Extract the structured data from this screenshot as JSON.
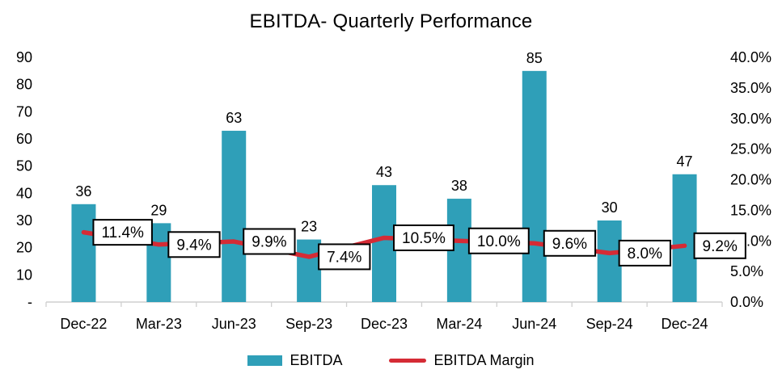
{
  "chart_data": {
    "type": "combo_bar_line",
    "title": "EBITDA- Quarterly Performance",
    "categories": [
      "Dec-22",
      "Mar-23",
      "Jun-23",
      "Sep-23",
      "Dec-23",
      "Mar-24",
      "Jun-24",
      "Sep-24",
      "Dec-24"
    ],
    "series": [
      {
        "name": "EBITDA",
        "type": "bar",
        "axis": "left",
        "color": "#2f9fb8",
        "values": [
          36,
          29,
          63,
          23,
          43,
          38,
          85,
          30,
          47
        ],
        "value_labels": [
          "36",
          "29",
          "63",
          "23",
          "43",
          "38",
          "85",
          "30",
          "47"
        ]
      },
      {
        "name": "EBITDA Margin",
        "type": "line",
        "axis": "right",
        "color": "#d52b35",
        "values_pct": [
          11.4,
          9.4,
          9.9,
          7.4,
          10.5,
          10.0,
          9.6,
          8.0,
          9.2
        ],
        "point_labels": [
          "11.4%",
          "9.4%",
          "9.9%",
          "7.4%",
          "10.5%",
          "10.0%",
          "9.6%",
          "8.0%",
          "9.2%"
        ]
      }
    ],
    "left_axis": {
      "min": 0,
      "max": 90,
      "tick_values": [
        90,
        80,
        70,
        60,
        50,
        40,
        30,
        20,
        10,
        0
      ],
      "tick_labels": [
        "90",
        "80",
        "70",
        "60",
        "50",
        "40",
        "30",
        "20",
        "10",
        "-"
      ]
    },
    "right_axis": {
      "min": 0,
      "max": 40,
      "tick_values": [
        40,
        35,
        30,
        25,
        20,
        15,
        10,
        5,
        0
      ],
      "tick_labels": [
        "40.0%",
        "35.0%",
        "30.0%",
        "25.0%",
        "20.0%",
        "15.0%",
        "10.0%",
        "5.0%",
        "0.0%"
      ]
    },
    "legend": [
      "EBITDA",
      "EBITDA Margin"
    ],
    "grid": false,
    "background": "#ffffff",
    "axis_line_color": "#cfcfcf"
  }
}
